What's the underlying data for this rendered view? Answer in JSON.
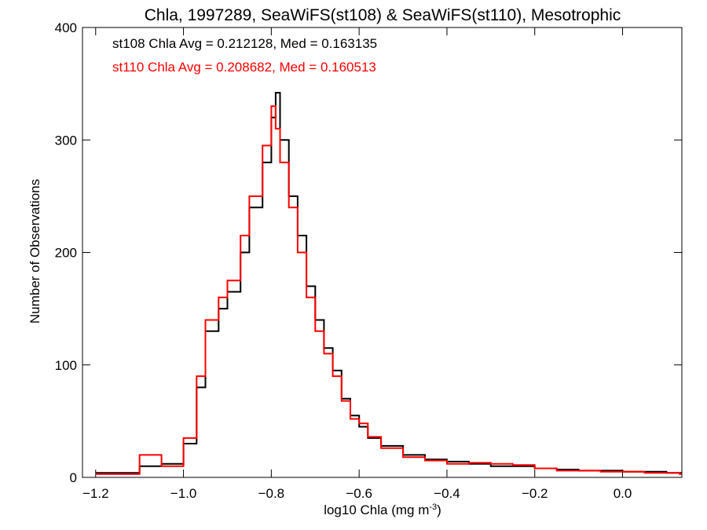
{
  "chart_data": {
    "type": "histogram",
    "title": "Chla, 1997289, SeaWiFS(st108) & SeaWiFS(st110), Mesotrophic",
    "xlabel": "log10 Chla (mg m",
    "xlabel_sup": "-3",
    "xlabel_close": ")",
    "ylabel": "Number of Observations",
    "xlim": [
      -1.23,
      0.135
    ],
    "ylim": [
      0,
      400
    ],
    "x_ticks": [
      -1.2,
      -1.0,
      -0.8,
      -0.6,
      -0.4,
      -0.2,
      0.0
    ],
    "x_tick_labels": [
      "−1.2",
      "−1.0",
      "−0.8",
      "−0.6",
      "−0.4",
      "−0.2",
      "0.0"
    ],
    "y_ticks": [
      0,
      100,
      200,
      300,
      400
    ],
    "y_tick_labels": [
      "0",
      "100",
      "200",
      "300",
      "400"
    ],
    "grid": false,
    "annotations": [
      {
        "text": "st108 Chla Avg = 0.212128, Med = 0.163135",
        "color": "#000000"
      },
      {
        "text": "st110 Chla Avg = 0.208682, Med = 0.160513",
        "color": "#ff0000"
      }
    ],
    "series": [
      {
        "color": "#000000",
        "x": [
          -1.2,
          -1.1,
          -1.05,
          -1.0,
          -0.97,
          -0.95,
          -0.92,
          -0.9,
          -0.87,
          -0.85,
          -0.82,
          -0.8,
          -0.79,
          -0.78,
          -0.76,
          -0.74,
          -0.72,
          -0.7,
          -0.68,
          -0.66,
          -0.64,
          -0.62,
          -0.6,
          -0.58,
          -0.55,
          -0.5,
          -0.45,
          -0.4,
          -0.35,
          -0.3,
          -0.25,
          -0.2,
          -0.15,
          -0.1,
          -0.05,
          0.0,
          0.05,
          0.1,
          0.13
        ],
        "values": [
          4,
          10,
          12,
          30,
          80,
          130,
          150,
          165,
          200,
          240,
          280,
          320,
          342,
          300,
          250,
          215,
          170,
          140,
          115,
          95,
          70,
          55,
          45,
          35,
          28,
          20,
          16,
          14,
          12,
          10,
          10,
          8,
          7,
          6,
          6,
          5,
          5,
          4,
          4
        ]
      },
      {
        "color": "#ff0000",
        "x": [
          -1.2,
          -1.1,
          -1.05,
          -1.0,
          -0.97,
          -0.95,
          -0.92,
          -0.9,
          -0.87,
          -0.85,
          -0.82,
          -0.8,
          -0.79,
          -0.78,
          -0.76,
          -0.74,
          -0.72,
          -0.7,
          -0.68,
          -0.66,
          -0.64,
          -0.62,
          -0.6,
          -0.58,
          -0.55,
          -0.5,
          -0.45,
          -0.4,
          -0.35,
          -0.3,
          -0.25,
          -0.2,
          -0.15,
          -0.1,
          -0.05,
          0.0,
          0.05,
          0.1,
          0.13
        ],
        "values": [
          3,
          20,
          10,
          35,
          90,
          140,
          160,
          175,
          215,
          250,
          295,
          330,
          310,
          280,
          240,
          200,
          160,
          130,
          110,
          90,
          68,
          52,
          48,
          36,
          26,
          18,
          15,
          12,
          13,
          12,
          11,
          8,
          6,
          6,
          5,
          5,
          4,
          4,
          3
        ]
      }
    ]
  }
}
